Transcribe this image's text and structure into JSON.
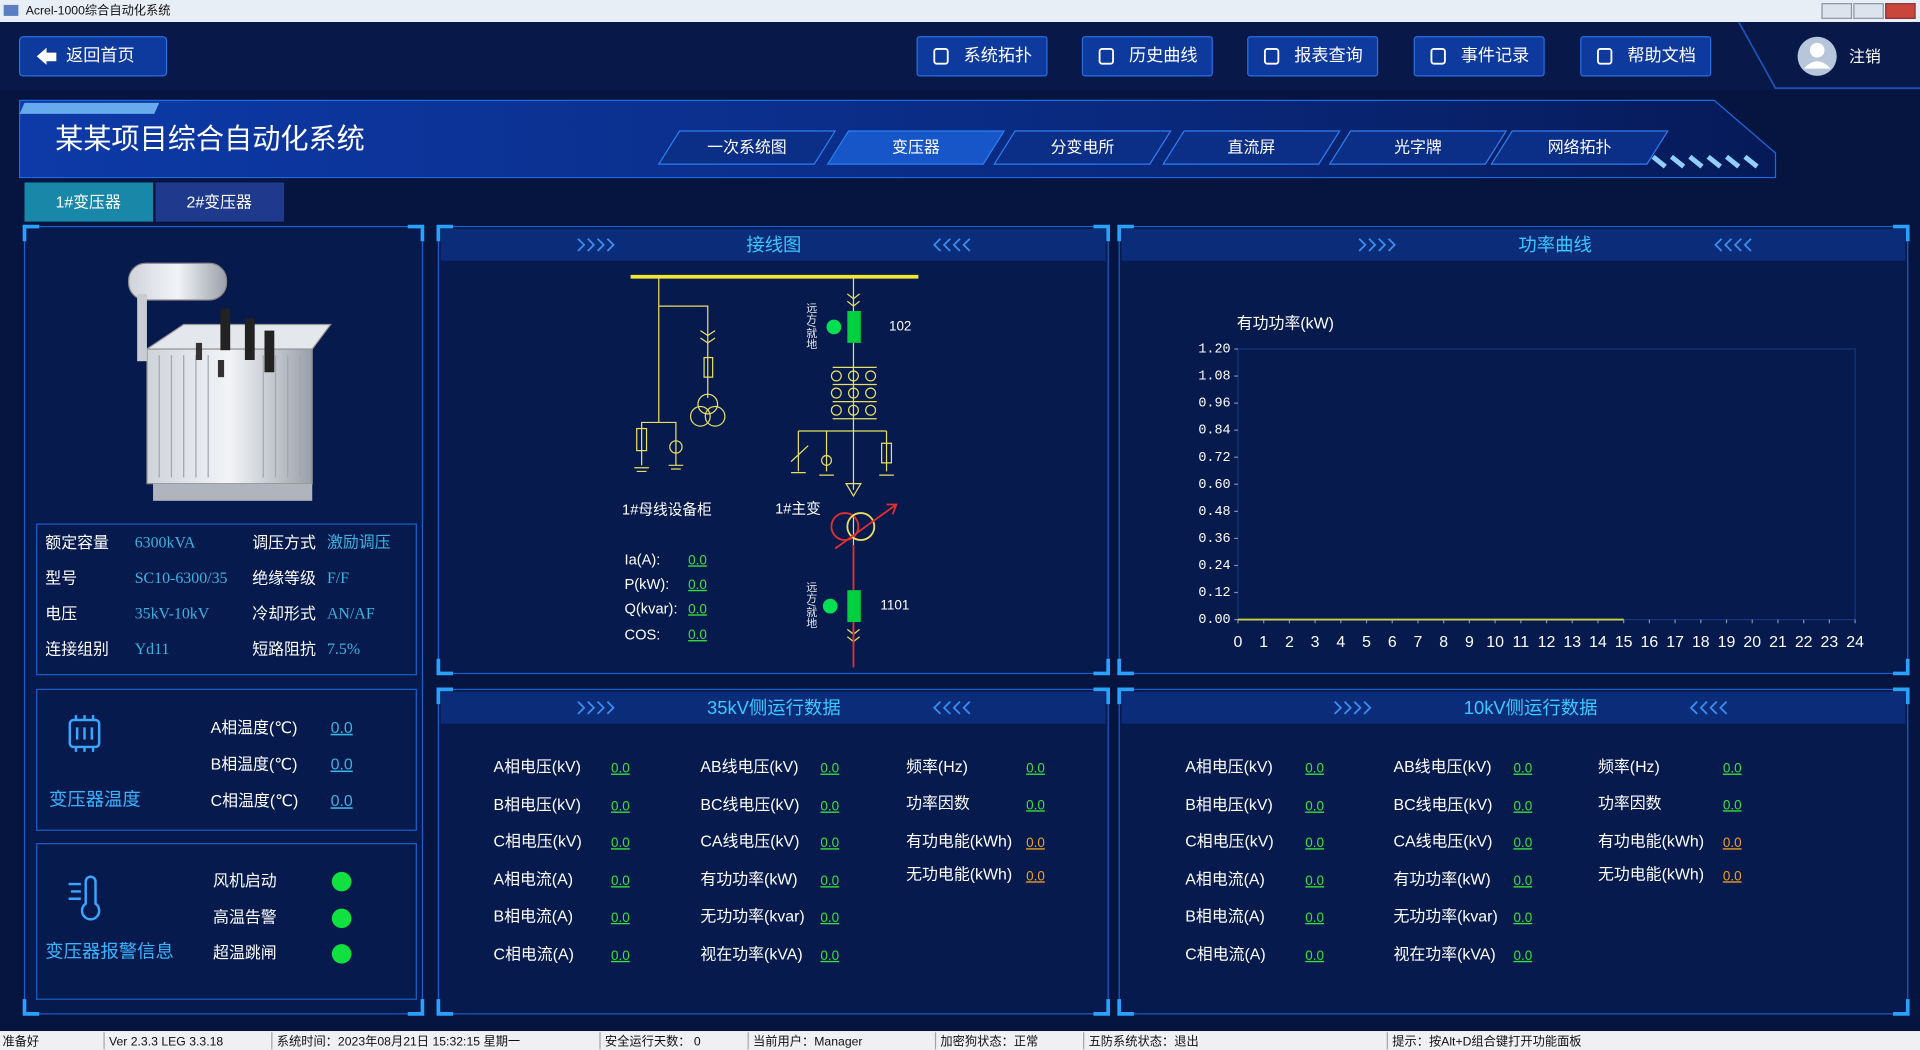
{
  "window": {
    "title": "Acrel-1000综合自动化系统"
  },
  "toolbar": {
    "back": "返回首页",
    "buttons": [
      "系统拓扑",
      "历史曲线",
      "报表查询",
      "事件记录",
      "帮助文档"
    ],
    "logout": "注销"
  },
  "header": {
    "title": "某某项目综合自动化系统",
    "tabs": [
      "一次系统图",
      "变压器",
      "分变电所",
      "直流屏",
      "光字牌",
      "网络拓扑"
    ]
  },
  "transformer_tabs": [
    "1#变压器",
    "2#变压器"
  ],
  "specs": [
    [
      "额定容量",
      "6300kVA",
      "调压方式",
      "激励调压"
    ],
    [
      "型号",
      "SC10-6300/35",
      "绝缘等级",
      "F/F"
    ],
    [
      "电压",
      "35kV-10kV",
      "冷却形式",
      "AN/AF"
    ],
    [
      "连接组别",
      "Yd11",
      "短路阻抗",
      "7.5%"
    ]
  ],
  "temperature": {
    "title": "变压器温度",
    "rows": [
      [
        "A相温度(℃)",
        "0.0"
      ],
      [
        "B相温度(℃)",
        "0.0"
      ],
      [
        "C相温度(℃)",
        "0.0"
      ]
    ]
  },
  "alarms": {
    "title": "变压器报警信息",
    "items": [
      "风机启动",
      "高温告警",
      "超温跳闸"
    ]
  },
  "wiring": {
    "title": "接线图",
    "bus_cabinet": "1#母线设备柜",
    "main_transformer": "1#主变",
    "switch_top": "102",
    "switch_bottom": "1101",
    "mode_top": "远方/就地",
    "mode_bottom": "远方/就地",
    "readings": [
      [
        "Ia(A):",
        "0.0"
      ],
      [
        "P(kW):",
        "0.0"
      ],
      [
        "Q(kvar):",
        "0.0"
      ],
      [
        "COS:",
        "0.0"
      ]
    ]
  },
  "chart_data": {
    "type": "line",
    "title": "功率曲线",
    "y_label": "有功功率(kW)",
    "x": [
      0,
      1,
      2,
      3,
      4,
      5,
      6,
      7,
      8,
      9,
      10,
      11,
      12,
      13,
      14,
      15,
      16,
      17,
      18,
      19,
      20,
      21,
      22,
      23,
      24
    ],
    "values": [
      0,
      0,
      0,
      0,
      0,
      0,
      0,
      0,
      0,
      0,
      0,
      0,
      0,
      0,
      0,
      0,
      null,
      null,
      null,
      null,
      null,
      null,
      null,
      null,
      null
    ],
    "color": "#c8d040",
    "xlim": [
      0,
      24
    ],
    "xticks": [
      0,
      1,
      2,
      3,
      4,
      5,
      6,
      7,
      8,
      9,
      10,
      11,
      12,
      13,
      14,
      15,
      16,
      17,
      18,
      19,
      20,
      21,
      22,
      23,
      24
    ],
    "ylim": [
      0,
      1.2
    ],
    "yticks": [
      {
        "value": 0,
        "label": "0.00"
      },
      {
        "value": 0.12,
        "label": "0.12"
      },
      {
        "value": 0.24,
        "label": "0.24"
      },
      {
        "value": 0.36,
        "label": "0.36"
      },
      {
        "value": 0.48,
        "label": "0.48"
      },
      {
        "value": 0.6,
        "label": "0.60"
      },
      {
        "value": 0.72,
        "label": "0.72"
      },
      {
        "value": 0.84,
        "label": "0.84"
      },
      {
        "value": 0.96,
        "label": "0.96"
      },
      {
        "value": 1.08,
        "label": "1.08"
      },
      {
        "value": 1.2,
        "label": "1.20"
      }
    ]
  },
  "side35": {
    "title": "35kV侧运行数据",
    "columns": [
      [
        [
          "A相电压(kV)",
          "0.0"
        ],
        [
          "B相电压(kV)",
          "0.0"
        ],
        [
          "C相电压(kV)",
          "0.0"
        ],
        [
          "A相电流(A)",
          "0.0"
        ],
        [
          "B相电流(A)",
          "0.0"
        ],
        [
          "C相电流(A)",
          "0.0"
        ]
      ],
      [
        [
          "AB线电压(kV)",
          "0.0"
        ],
        [
          "BC线电压(kV)",
          "0.0"
        ],
        [
          "CA线电压(kV)",
          "0.0"
        ],
        [
          "有功功率(kW)",
          "0.0"
        ],
        [
          "无功功率(kvar)",
          "0.0"
        ],
        [
          "视在功率(kVA)",
          "0.0"
        ]
      ],
      [
        [
          "频率(Hz)",
          "0.0"
        ],
        [
          "功率因数",
          "0.0"
        ],
        [
          "有功电能(kWh)",
          "0.0"
        ],
        [
          "无功电能(kWh)",
          "0.0"
        ]
      ]
    ]
  },
  "side10": {
    "title": "10kV侧运行数据",
    "columns": [
      [
        [
          "A相电压(kV)",
          "0.0"
        ],
        [
          "B相电压(kV)",
          "0.0"
        ],
        [
          "C相电压(kV)",
          "0.0"
        ],
        [
          "A相电流(A)",
          "0.0"
        ],
        [
          "B相电流(A)",
          "0.0"
        ],
        [
          "C相电流(A)",
          "0.0"
        ]
      ],
      [
        [
          "AB线电压(kV)",
          "0.0"
        ],
        [
          "BC线电压(kV)",
          "0.0"
        ],
        [
          "CA线电压(kV)",
          "0.0"
        ],
        [
          "有功功率(kW)",
          "0.0"
        ],
        [
          "无功功率(kvar)",
          "0.0"
        ],
        [
          "视在功率(kVA)",
          "0.0"
        ]
      ],
      [
        [
          "频率(Hz)",
          "0.0"
        ],
        [
          "功率因数",
          "0.0"
        ],
        [
          "有功电能(kWh)",
          "0.0"
        ],
        [
          "无功电能(kWh)",
          "0.0"
        ]
      ]
    ]
  },
  "statusbar": [
    "准备好",
    "Ver 2.3.3 LEG 3.3.18",
    "系统时间：2023年08月21日  15:32:15  星期一",
    "安全运行天数： 0",
    "当前用户：Manager",
    "加密狗状态：正常",
    "五防系统状态：退出",
    "提示：按Alt+D组合键打开功能面板"
  ]
}
